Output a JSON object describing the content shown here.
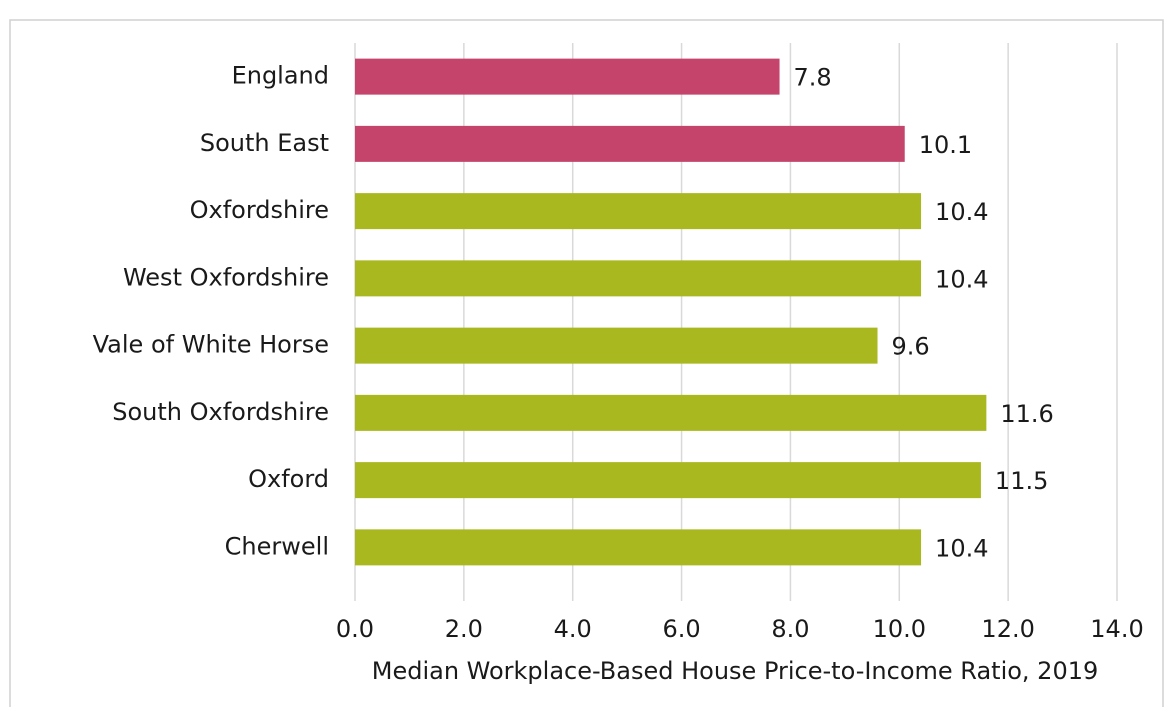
{
  "chart_data": {
    "type": "barh",
    "categories": [
      "England",
      "South East",
      "Oxfordshire",
      "West Oxfordshire",
      "Vale of White Horse",
      "South Oxfordshire",
      "Oxford",
      "Cherwell"
    ],
    "values": [
      7.8,
      10.1,
      10.4,
      10.4,
      9.6,
      11.6,
      11.5,
      10.4
    ],
    "colors": [
      "#c5446c",
      "#c5446c",
      "#a9b81e",
      "#a9b81e",
      "#a9b81e",
      "#a9b81e",
      "#a9b81e",
      "#a9b81e"
    ],
    "xlabel": "Median Workplace-Based House Price-to-Income Ratio, 2019",
    "xlim": [
      0,
      14
    ],
    "xticks": [
      {
        "value": 0,
        "label": "0.0"
      },
      {
        "value": 2,
        "label": "2.0"
      },
      {
        "value": 4,
        "label": "4.0"
      },
      {
        "value": 6,
        "label": "6.0"
      },
      {
        "value": 8,
        "label": "8.0"
      },
      {
        "value": 10,
        "label": "10.0"
      },
      {
        "value": 12,
        "label": "12.0"
      },
      {
        "value": 14,
        "label": "14.0"
      }
    ],
    "grid": true
  }
}
